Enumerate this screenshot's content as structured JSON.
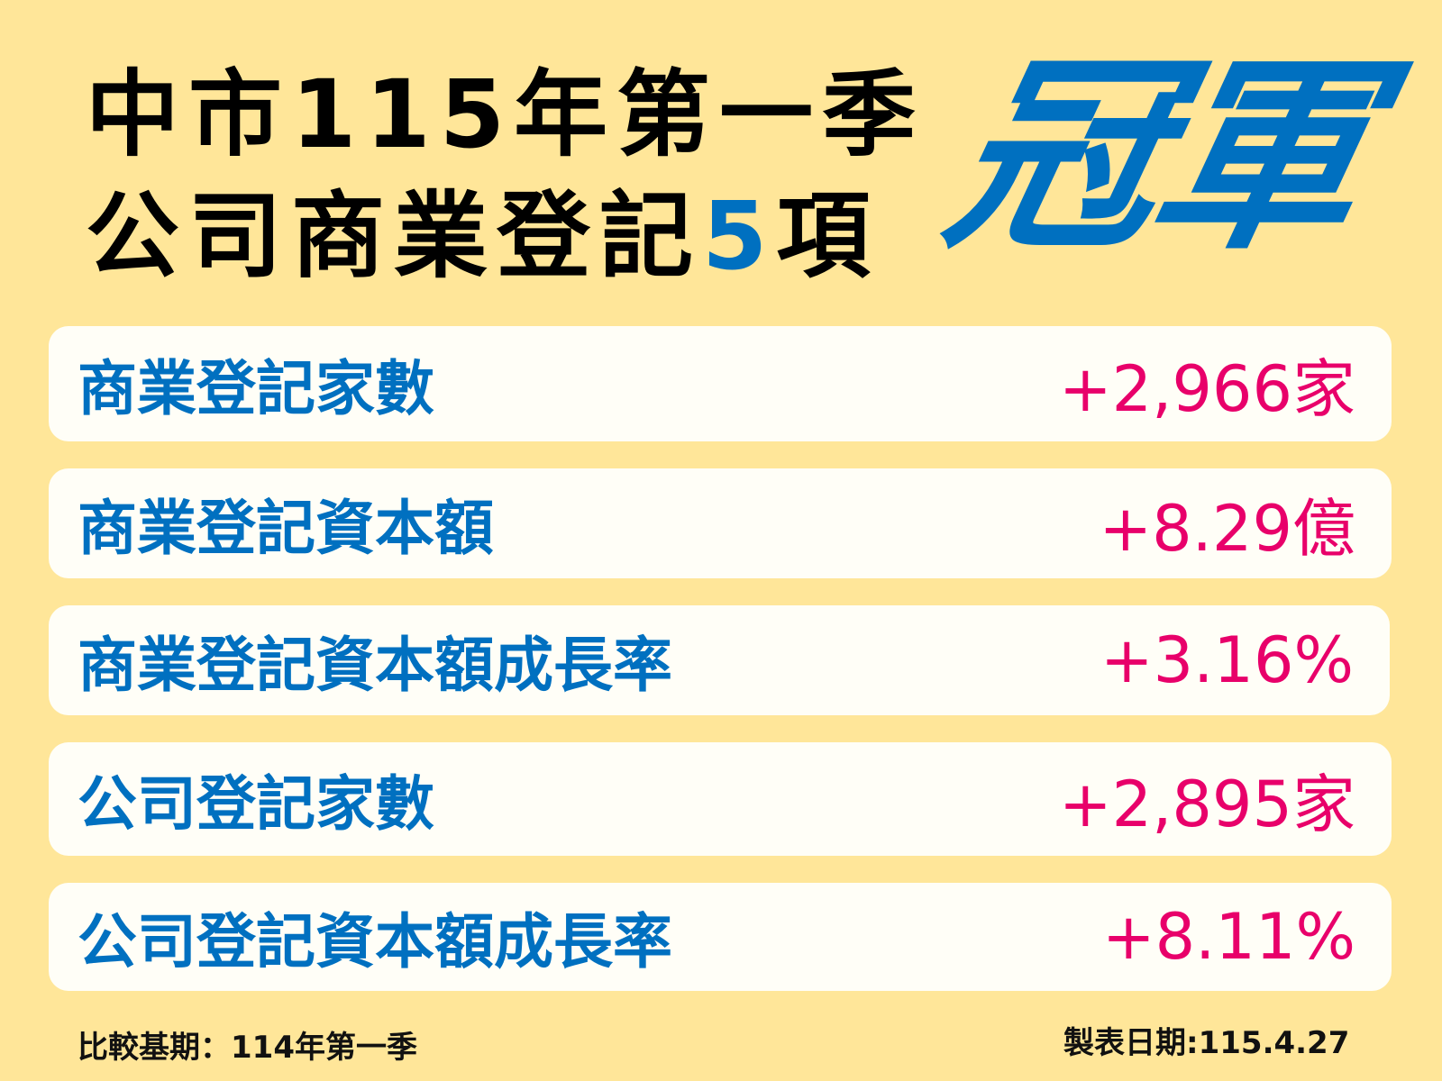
{
  "header": {
    "line1": "中市115年第一季",
    "line2_prefix": "公司商業登記",
    "line2_number": "5",
    "line2_suffix": "項",
    "highlight": "冠軍"
  },
  "items": [
    {
      "label": "商業登記家數",
      "value": "+2,966家"
    },
    {
      "label": "商業登記資本額",
      "value": "+8.29億"
    },
    {
      "label": "商業登記資本額成長率",
      "value": "+3.16%"
    },
    {
      "label": "公司登記家數",
      "value": "+2,895家"
    },
    {
      "label": "公司登記資本額成長率",
      "value": "+8.11%"
    }
  ],
  "footer": {
    "comparison": "比較基期：114年第一季",
    "date": "製表日期:115.4.27"
  },
  "colors": {
    "background": "#FFE699",
    "blue": "#0070C0",
    "pink": "#E8006A",
    "card": "#FFFEF7"
  }
}
